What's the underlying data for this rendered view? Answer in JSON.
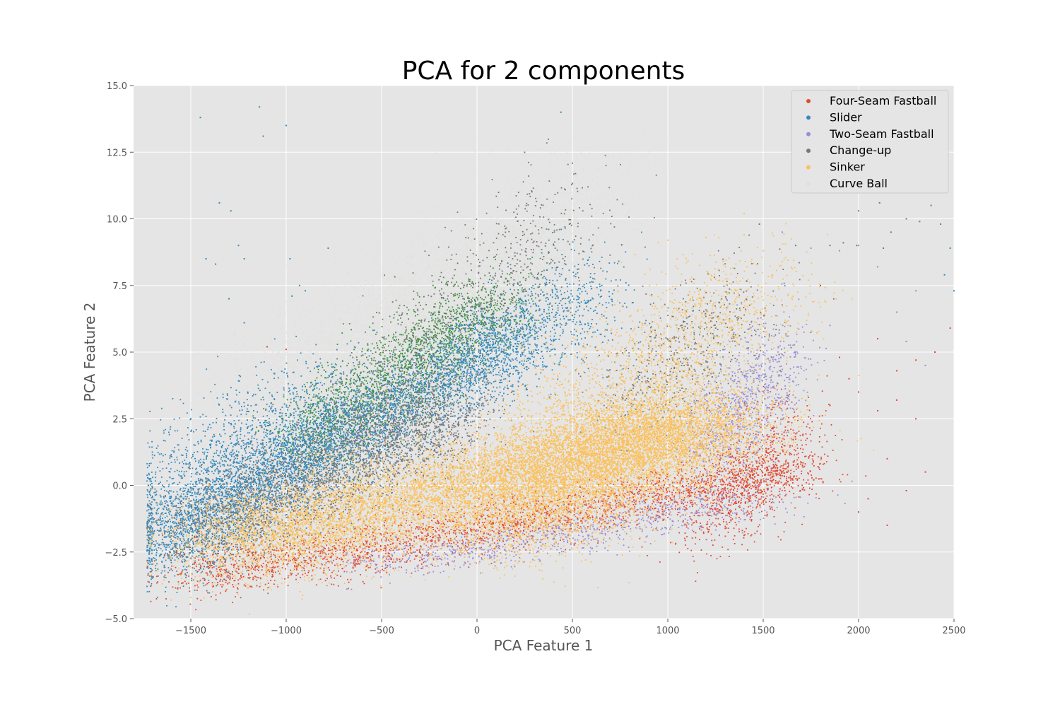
{
  "chart_data": {
    "type": "scatter",
    "title": "PCA for 2 components",
    "xlabel": "PCA Feature 1",
    "ylabel": "PCA Feature 2",
    "xlim": [
      -1800,
      2500
    ],
    "ylim": [
      -5.0,
      15.0
    ],
    "x_ticks": [
      -1500,
      -1000,
      -500,
      0,
      500,
      1000,
      1500,
      2000,
      2500
    ],
    "x_tick_labels": [
      "−1500",
      "−1000",
      "−500",
      "0",
      "500",
      "1000",
      "1500",
      "2000",
      "2500"
    ],
    "y_ticks": [
      -5.0,
      -2.5,
      0.0,
      2.5,
      5.0,
      7.5,
      10.0,
      12.5,
      15.0
    ],
    "y_tick_labels": [
      "−5.0",
      "−2.5",
      "0.0",
      "2.5",
      "5.0",
      "7.5",
      "10.0",
      "12.5",
      "15.0"
    ],
    "grid": true,
    "legend_position": "top-right",
    "background_color": "#e5e5e5",
    "series": [
      {
        "name": "Four-Seam Fastball",
        "color": "#e24a33",
        "clusters": [
          {
            "x0": -1500,
            "y0": -3.5,
            "x1": 1650,
            "y1": 0.5,
            "spread_x": 160,
            "spread_y": 0.45,
            "n": 2600
          },
          {
            "x0": 1200,
            "y0": -1.5,
            "x1": 1650,
            "y1": 2.0,
            "spread_x": 120,
            "spread_y": 0.9,
            "n": 900
          }
        ],
        "outliers": [
          [
            2000,
            3.5
          ],
          [
            2100,
            2.8
          ],
          [
            2200,
            3.2
          ],
          [
            2300,
            2.5
          ],
          [
            2150,
            1.0
          ],
          [
            2050,
            -0.5
          ],
          [
            2350,
            0.5
          ],
          [
            2250,
            -0.2
          ],
          [
            2400,
            5.0
          ],
          [
            2480,
            5.9
          ],
          [
            2300,
            4.7
          ],
          [
            1950,
            4.0
          ],
          [
            2200,
            4.3
          ],
          [
            1900,
            4.8
          ],
          [
            2100,
            5.5
          ],
          [
            1850,
            3.0
          ],
          [
            2000,
            -1.0
          ],
          [
            2150,
            -1.5
          ],
          [
            -1000,
            5.1
          ],
          [
            -1100,
            5.2
          ]
        ]
      },
      {
        "name": "Slider",
        "color": "#348abd",
        "clusters": [
          {
            "x0": -1700,
            "y0": -2.3,
            "x1": 200,
            "y1": 5.5,
            "spread_x": 120,
            "spread_y": 0.8,
            "n": 4200
          },
          {
            "x0": -1700,
            "y0": -1.0,
            "x1": -700,
            "y1": 3.0,
            "spread_x": 160,
            "spread_y": 1.2,
            "n": 1800
          },
          {
            "x0": 0,
            "y0": 4.5,
            "x1": 600,
            "y1": 7.5,
            "spread_x": 140,
            "spread_y": 0.9,
            "n": 900
          }
        ],
        "outliers": [
          [
            -1450,
            13.8
          ],
          [
            -1140,
            14.2
          ],
          [
            -1000,
            13.5
          ],
          [
            -1120,
            13.1
          ],
          [
            -1350,
            10.6
          ],
          [
            -1290,
            10.3
          ],
          [
            -1420,
            8.5
          ],
          [
            -1370,
            8.3
          ],
          [
            -1220,
            8.5
          ],
          [
            -980,
            8.5
          ],
          [
            -1250,
            9.0
          ],
          [
            -1300,
            7.0
          ],
          [
            -930,
            7.5
          ],
          [
            -900,
            7.3
          ],
          [
            -970,
            7.1
          ],
          [
            -1220,
            6.1
          ],
          [
            -1500,
            2.5
          ],
          [
            440,
            14.0
          ],
          [
            2450,
            7.9
          ],
          [
            2500,
            7.3
          ],
          [
            2430,
            9.8
          ],
          [
            2480,
            8.9
          ]
        ]
      },
      {
        "name": "Two-Seam Fastball",
        "color": "#988ed5",
        "clusters": [
          {
            "x0": -500,
            "y0": -3.0,
            "x1": 1500,
            "y1": -0.5,
            "spread_x": 200,
            "spread_y": 0.35,
            "n": 900
          },
          {
            "x0": 1200,
            "y0": 1.0,
            "x1": 1600,
            "y1": 5.0,
            "spread_x": 120,
            "spread_y": 0.9,
            "n": 900
          }
        ],
        "outliers": [
          [
            1750,
            8.9
          ],
          [
            1900,
            8.8
          ],
          [
            2000,
            9.0
          ],
          [
            1600,
            9.5
          ],
          [
            2100,
            8.2
          ],
          [
            2200,
            6.5
          ],
          [
            2300,
            7.3
          ],
          [
            1850,
            6.0
          ],
          [
            2250,
            5.4
          ],
          [
            2350,
            4.5
          ]
        ]
      },
      {
        "name": "Change-up",
        "color": "#777777",
        "clusters": [
          {
            "x0": -1500,
            "y0": -2.2,
            "x1": -100,
            "y1": 3.0,
            "spread_x": 180,
            "spread_y": 0.9,
            "n": 3200
          },
          {
            "x0": -700,
            "y0": 2.0,
            "x1": 500,
            "y1": 10.5,
            "spread_x": 160,
            "spread_y": 1.0,
            "n": 900
          },
          {
            "x0": 800,
            "y0": 3.0,
            "x1": 1400,
            "y1": 7.0,
            "spread_x": 180,
            "spread_y": 1.0,
            "n": 600
          }
        ],
        "outliers": [
          [
            2000,
            10.3
          ],
          [
            2110,
            10.6
          ],
          [
            2170,
            9.5
          ],
          [
            2250,
            10.0
          ],
          [
            2320,
            9.9
          ],
          [
            2380,
            10.5
          ],
          [
            1990,
            9.0
          ],
          [
            2130,
            8.9
          ],
          [
            1800,
            7.5
          ],
          [
            1850,
            9.0
          ],
          [
            1920,
            9.1
          ],
          [
            1670,
            9.0
          ],
          [
            1480,
            9.8
          ],
          [
            -780,
            8.9
          ]
        ]
      },
      {
        "name": "Sinker",
        "color": "#fbc15e",
        "clusters": [
          {
            "x0": -1300,
            "y0": -2.3,
            "x1": 1300,
            "y1": 2.5,
            "spread_x": 240,
            "spread_y": 0.8,
            "n": 9000
          },
          {
            "x0": 100,
            "y0": -1.5,
            "x1": 1100,
            "y1": 2.5,
            "spread_x": 250,
            "spread_y": 0.9,
            "n": 5000
          },
          {
            "x0": 400,
            "y0": 2.0,
            "x1": 1500,
            "y1": 7.5,
            "spread_x": 220,
            "spread_y": 1.1,
            "n": 1500
          }
        ],
        "outliers": [
          [
            1000,
            9.2
          ],
          [
            1200,
            9.3
          ],
          [
            1400,
            9.4
          ],
          [
            1500,
            8.8
          ],
          [
            1050,
            8.5
          ],
          [
            1550,
            7.9
          ],
          [
            1400,
            10.2
          ],
          [
            1290,
            8.4
          ]
        ]
      },
      {
        "name": "Curve Ball",
        "color": "#dfe0da",
        "clusters": [
          {
            "x0": -1200,
            "y0": 3.0,
            "x1": 700,
            "y1": 11.0,
            "spread_x": 220,
            "spread_y": 1.5,
            "n": 4500
          },
          {
            "x0": -600,
            "y0": 3.5,
            "x1": 400,
            "y1": 9.0,
            "spread_x": 180,
            "spread_y": 1.0,
            "n": 2500
          }
        ],
        "outliers": []
      },
      {
        "name": "",
        "color": "#3f8f3f",
        "clusters": [
          {
            "x0": -900,
            "y0": 1.5,
            "x1": 100,
            "y1": 7.0,
            "spread_x": 150,
            "spread_y": 0.7,
            "n": 2200
          }
        ],
        "outliers": []
      }
    ]
  }
}
